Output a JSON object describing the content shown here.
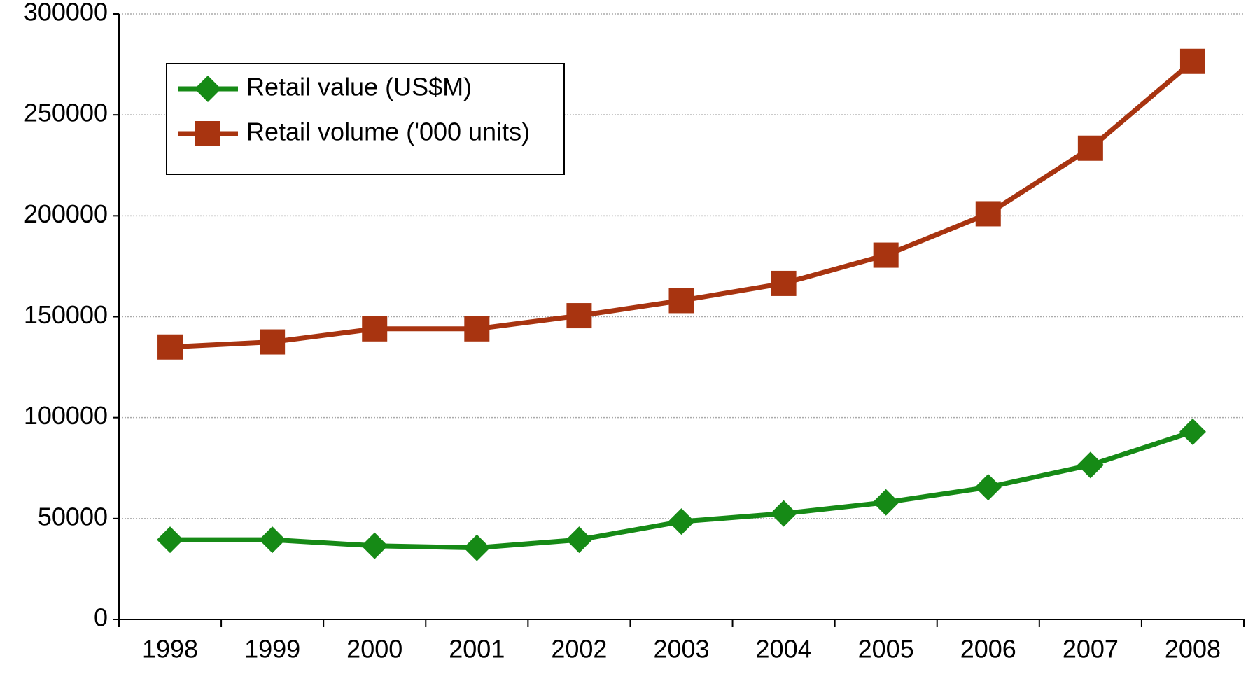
{
  "chart_data": {
    "type": "line",
    "categories": [
      "1998",
      "1999",
      "2000",
      "2001",
      "2002",
      "2003",
      "2004",
      "2005",
      "2006",
      "2007",
      "2008"
    ],
    "series": [
      {
        "name": "Retail value (US$M)",
        "color": "#168a16",
        "marker": "diamond",
        "values": [
          39500,
          39500,
          36500,
          35500,
          39500,
          48500,
          52500,
          58000,
          65500,
          76500,
          93000
        ]
      },
      {
        "name": "Retail volume ('000 units)",
        "color": "#a83410",
        "marker": "square",
        "values": [
          135000,
          137500,
          144000,
          144000,
          150500,
          158000,
          166500,
          180500,
          201000,
          233500,
          276500
        ]
      }
    ],
    "ylim": [
      0,
      300000
    ],
    "yticks": [
      0,
      50000,
      100000,
      150000,
      200000,
      250000,
      300000
    ],
    "grid": true,
    "legend": "upper left"
  }
}
